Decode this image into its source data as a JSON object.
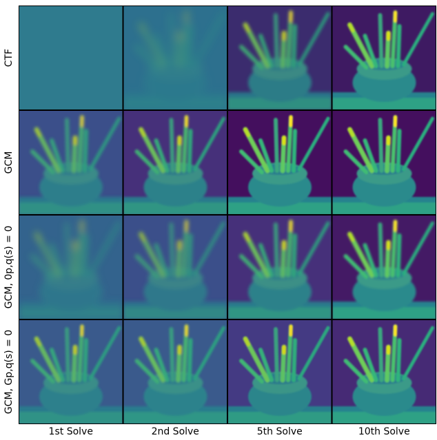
{
  "row_labels": [
    "CTF",
    "GCM",
    "GCM, 0p,q(s) = 0",
    "GCM, Gp,q(s) = 0"
  ],
  "column_labels": [
    "1st Solve",
    "2nd Solve",
    "5th Solve",
    "10th Solve"
  ]
}
